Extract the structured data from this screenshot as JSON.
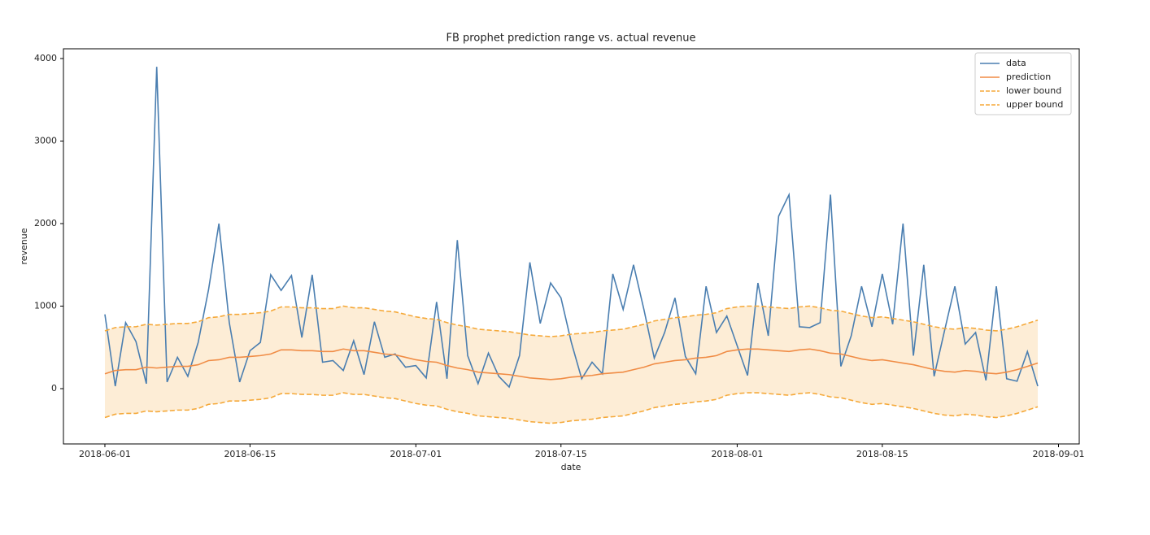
{
  "chart_data": {
    "type": "line",
    "title": "FB prophet prediction range vs. actual revenue",
    "xlabel": "date",
    "ylabel": "revenue",
    "x": [
      "2018-06-01",
      "2018-06-02",
      "2018-06-03",
      "2018-06-04",
      "2018-06-05",
      "2018-06-06",
      "2018-06-07",
      "2018-06-08",
      "2018-06-09",
      "2018-06-10",
      "2018-06-11",
      "2018-06-12",
      "2018-06-13",
      "2018-06-14",
      "2018-06-15",
      "2018-06-16",
      "2018-06-17",
      "2018-06-18",
      "2018-06-19",
      "2018-06-20",
      "2018-06-21",
      "2018-06-22",
      "2018-06-23",
      "2018-06-24",
      "2018-06-25",
      "2018-06-26",
      "2018-06-27",
      "2018-06-28",
      "2018-06-29",
      "2018-06-30",
      "2018-07-01",
      "2018-07-02",
      "2018-07-03",
      "2018-07-04",
      "2018-07-05",
      "2018-07-06",
      "2018-07-07",
      "2018-07-08",
      "2018-07-09",
      "2018-07-10",
      "2018-07-11",
      "2018-07-12",
      "2018-07-13",
      "2018-07-14",
      "2018-07-15",
      "2018-07-16",
      "2018-07-17",
      "2018-07-18",
      "2018-07-19",
      "2018-07-20",
      "2018-07-21",
      "2018-07-22",
      "2018-07-23",
      "2018-07-24",
      "2018-07-25",
      "2018-07-26",
      "2018-07-27",
      "2018-07-28",
      "2018-07-29",
      "2018-07-30",
      "2018-07-31",
      "2018-08-01",
      "2018-08-02",
      "2018-08-03",
      "2018-08-04",
      "2018-08-05",
      "2018-08-06",
      "2018-08-07",
      "2018-08-08",
      "2018-08-09",
      "2018-08-10",
      "2018-08-11",
      "2018-08-12",
      "2018-08-13",
      "2018-08-14",
      "2018-08-15",
      "2018-08-16",
      "2018-08-17",
      "2018-08-18",
      "2018-08-19",
      "2018-08-20",
      "2018-08-21",
      "2018-08-22",
      "2018-08-23",
      "2018-08-24",
      "2018-08-25",
      "2018-08-26",
      "2018-08-27",
      "2018-08-28",
      "2018-08-29",
      "2018-08-30"
    ],
    "series": [
      {
        "name": "data",
        "color": "#4a7eb0",
        "dash": false,
        "values": [
          900,
          30,
          800,
          570,
          60,
          3900,
          80,
          380,
          150,
          560,
          1200,
          2000,
          800,
          80,
          460,
          560,
          1380,
          1190,
          1370,
          620,
          1380,
          320,
          340,
          220,
          580,
          170,
          810,
          380,
          420,
          260,
          280,
          130,
          1050,
          120,
          1800,
          400,
          60,
          430,
          150,
          20,
          400,
          1530,
          790,
          1280,
          1100,
          560,
          120,
          320,
          180,
          1390,
          960,
          1500,
          960,
          370,
          680,
          1100,
          390,
          180,
          1240,
          680,
          880,
          520,
          160,
          1280,
          640,
          2090,
          2350,
          750,
          740,
          800,
          2350,
          270,
          640,
          1240,
          750,
          1390,
          780,
          2000,
          400,
          1500,
          150,
          700,
          1240,
          540,
          680,
          100,
          1240,
          120,
          90,
          450,
          30
        ]
      },
      {
        "name": "prediction",
        "color": "#f08c45",
        "dash": false,
        "values": [
          180,
          220,
          230,
          230,
          260,
          250,
          260,
          270,
          270,
          290,
          340,
          350,
          380,
          380,
          390,
          400,
          420,
          470,
          470,
          460,
          460,
          450,
          450,
          480,
          460,
          460,
          440,
          420,
          410,
          380,
          350,
          330,
          320,
          280,
          250,
          230,
          200,
          190,
          180,
          170,
          150,
          130,
          120,
          110,
          120,
          140,
          150,
          160,
          180,
          190,
          200,
          230,
          260,
          300,
          320,
          340,
          350,
          370,
          380,
          400,
          450,
          470,
          480,
          480,
          470,
          460,
          450,
          470,
          480,
          460,
          430,
          420,
          390,
          360,
          340,
          350,
          330,
          310,
          290,
          260,
          230,
          210,
          200,
          220,
          210,
          190,
          180,
          200,
          230,
          270,
          310
        ]
      },
      {
        "name": "lower bound",
        "color": "#f5a93a",
        "dash": true,
        "values": [
          -350,
          -310,
          -300,
          -300,
          -270,
          -280,
          -270,
          -260,
          -260,
          -240,
          -190,
          -180,
          -150,
          -150,
          -140,
          -130,
          -110,
          -60,
          -60,
          -70,
          -70,
          -80,
          -80,
          -50,
          -70,
          -70,
          -90,
          -110,
          -120,
          -150,
          -180,
          -200,
          -210,
          -250,
          -280,
          -300,
          -330,
          -340,
          -350,
          -360,
          -380,
          -400,
          -410,
          -420,
          -410,
          -390,
          -380,
          -370,
          -350,
          -340,
          -330,
          -300,
          -270,
          -230,
          -210,
          -190,
          -180,
          -160,
          -150,
          -130,
          -80,
          -60,
          -50,
          -50,
          -60,
          -70,
          -80,
          -60,
          -50,
          -70,
          -100,
          -110,
          -140,
          -170,
          -190,
          -180,
          -200,
          -220,
          -240,
          -270,
          -300,
          -320,
          -330,
          -310,
          -320,
          -340,
          -350,
          -330,
          -300,
          -260,
          -220
        ]
      },
      {
        "name": "upper bound",
        "color": "#f5a93a",
        "dash": true,
        "values": [
          700,
          740,
          750,
          750,
          780,
          770,
          780,
          790,
          790,
          810,
          860,
          870,
          900,
          900,
          910,
          920,
          940,
          990,
          990,
          980,
          980,
          970,
          970,
          1000,
          980,
          980,
          960,
          940,
          930,
          900,
          870,
          850,
          840,
          800,
          770,
          750,
          720,
          710,
          700,
          690,
          670,
          650,
          640,
          630,
          640,
          660,
          670,
          680,
          700,
          710,
          720,
          750,
          780,
          820,
          840,
          860,
          870,
          890,
          900,
          920,
          970,
          990,
          1000,
          1000,
          990,
          980,
          970,
          990,
          1000,
          980,
          950,
          940,
          910,
          880,
          860,
          870,
          850,
          830,
          810,
          780,
          750,
          730,
          720,
          740,
          730,
          710,
          700,
          720,
          750,
          790,
          830
        ]
      }
    ],
    "band_color": "#fdedd6",
    "xlim": [
      "2018-05-28",
      "2018-09-03"
    ],
    "xticks": [
      "2018-06-01",
      "2018-06-15",
      "2018-07-01",
      "2018-07-15",
      "2018-08-01",
      "2018-08-15",
      "2018-09-01"
    ],
    "ylim": [
      -670,
      4118
    ],
    "yticks": [
      0,
      1000,
      2000,
      3000,
      4000
    ],
    "legend": "upper right",
    "grid": false
  }
}
